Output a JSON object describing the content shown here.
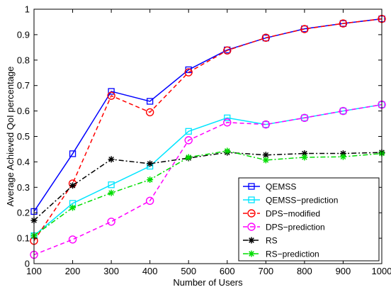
{
  "chart_data": {
    "type": "line",
    "xlabel": "Number of Users",
    "ylabel": "Average Achieved QoI percentage",
    "xlim": [
      100,
      1000
    ],
    "ylim": [
      0,
      1
    ],
    "xticks": [
      "100",
      "200",
      "300",
      "400",
      "500",
      "600",
      "700",
      "800",
      "900",
      "1000"
    ],
    "yticks": [
      "0",
      "0.1",
      "0.2",
      "0.3",
      "0.4",
      "0.5",
      "0.6",
      "0.7",
      "0.8",
      "0.9",
      "1"
    ],
    "legend_position": "bottom-right",
    "grid": false,
    "x": [
      100,
      200,
      300,
      400,
      500,
      600,
      700,
      800,
      900,
      1000
    ],
    "series": [
      {
        "name": "QEMSS",
        "color": "#0000ff",
        "dash": "solid",
        "marker": "square",
        "values": [
          0.205,
          0.432,
          0.677,
          0.638,
          0.762,
          0.84,
          0.887,
          0.923,
          0.944,
          0.962
        ]
      },
      {
        "name": "QEMSS−prediction",
        "color": "#00e5ff",
        "dash": "solid",
        "marker": "square",
        "values": [
          0.11,
          0.237,
          0.31,
          0.383,
          0.52,
          0.573,
          0.547,
          0.573,
          0.6,
          0.625
        ]
      },
      {
        "name": "DPS−modified",
        "color": "#ff0000",
        "dash": "dashed",
        "marker": "circle",
        "values": [
          0.09,
          0.315,
          0.66,
          0.595,
          0.752,
          0.838,
          0.888,
          0.922,
          0.944,
          0.962
        ]
      },
      {
        "name": "DPS−prediction",
        "color": "#ff00ff",
        "dash": "dashed",
        "marker": "circle",
        "values": [
          0.035,
          0.095,
          0.165,
          0.247,
          0.485,
          0.555,
          0.547,
          0.573,
          0.6,
          0.625
        ]
      },
      {
        "name": "RS",
        "color": "#000000",
        "dash": "dashdot",
        "marker": "star",
        "values": [
          0.17,
          0.307,
          0.41,
          0.393,
          0.415,
          0.437,
          0.427,
          0.433,
          0.433,
          0.437
        ]
      },
      {
        "name": "RS−prediction",
        "color": "#00dd00",
        "dash": "dashdot",
        "marker": "star",
        "values": [
          0.11,
          0.22,
          0.278,
          0.33,
          0.418,
          0.443,
          0.407,
          0.418,
          0.42,
          0.433
        ]
      }
    ]
  }
}
